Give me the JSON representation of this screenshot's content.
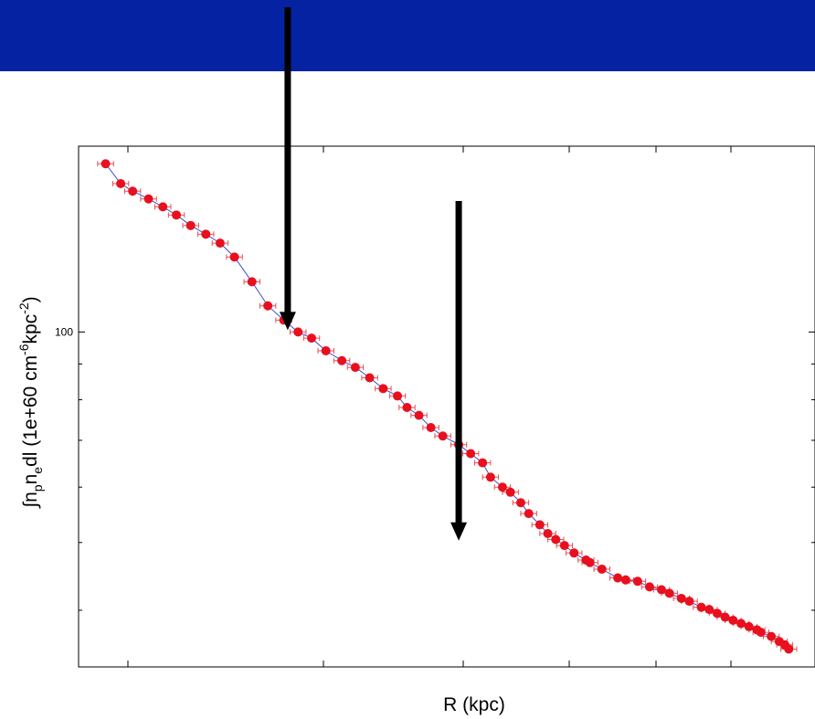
{
  "colors": {
    "banner": "#0522a3",
    "marker": "#e8101e",
    "errorbar": "#e05050",
    "model_line": "#3b4fd6",
    "arrow": "#000000"
  },
  "chart_data": {
    "type": "scatter",
    "xlabel": "R (kpc)",
    "ylabel_parts": [
      "∫n",
      "p",
      "n",
      "e",
      "dl (1e+60 cm",
      "-6",
      "kpc",
      "-2",
      ")"
    ],
    "y_scale": "log",
    "y_tick_labels": [
      "100"
    ],
    "xlim": [
      0,
      880
    ],
    "ylim": [
      34,
      180
    ],
    "grid": false,
    "legend": "none",
    "series": [
      {
        "marker": "circle",
        "x": [
          11,
          30,
          45,
          65,
          83,
          100,
          118,
          137,
          155,
          173,
          195,
          215,
          235,
          253,
          270,
          288,
          308,
          325,
          343,
          360,
          378,
          390,
          405,
          420,
          435,
          455,
          470,
          485,
          495,
          510,
          520,
          533,
          543,
          557,
          567,
          577,
          588,
          600,
          615,
          620,
          635,
          655,
          665,
          680,
          695,
          710,
          720,
          735,
          745,
          760,
          770,
          780,
          790,
          800,
          810,
          820,
          830,
          835,
          848,
          858,
          865,
          870
        ],
        "y": [
          174,
          163,
          159,
          155,
          151,
          147,
          142,
          138,
          134,
          128,
          118,
          109,
          104,
          100,
          98,
          94,
          91,
          89,
          86,
          83,
          81,
          78,
          76,
          73,
          71,
          69,
          67,
          65,
          62,
          60,
          59,
          57,
          55,
          53,
          51.5,
          50.5,
          49.5,
          48.3,
          47.2,
          46.8,
          45.8,
          44.5,
          44.2,
          44,
          43.2,
          42.8,
          42.3,
          41.6,
          41.2,
          40.4,
          40.1,
          39.6,
          39.1,
          38.7,
          38.3,
          37.9,
          37.5,
          37.2,
          36.7,
          36.1,
          35.7,
          35.2
        ],
        "xerr": 10
      }
    ],
    "annotations": [
      {
        "type": "arrow",
        "x": 240,
        "y_tip": 100,
        "from": "top"
      },
      {
        "type": "arrow",
        "x": 455,
        "y_tip": 50,
        "from": "above"
      }
    ]
  }
}
